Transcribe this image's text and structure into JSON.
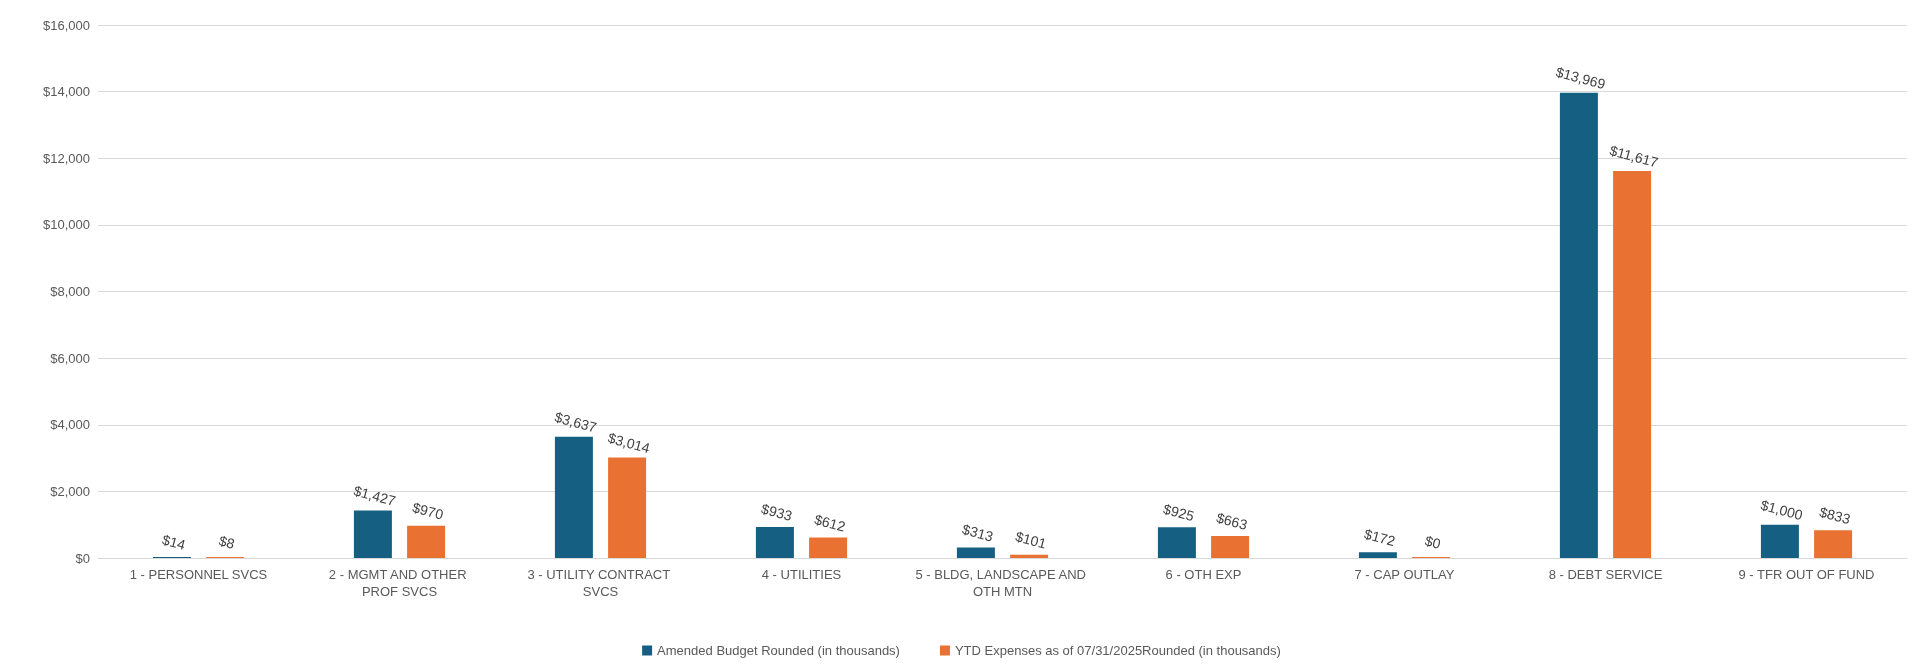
{
  "chart_data": {
    "type": "bar",
    "categories": [
      "1 - PERSONNEL SVCS",
      "2 - MGMT AND OTHER PROF SVCS",
      "3 - UTILITY CONTRACT SVCS",
      "4 - UTILITIES",
      "5 - BLDG, LANDSCAPE AND OTH MTN",
      "6 - OTH EXP",
      "7 - CAP OUTLAY",
      "8 - DEBT SERVICE",
      "9 - TFR OUT OF FUND"
    ],
    "series": [
      {
        "name": "Amended Budget Rounded (in thousands)",
        "color": "#156082",
        "values": [
          14,
          1427,
          3637,
          933,
          313,
          925,
          172,
          13969,
          1000
        ],
        "value_labels": [
          "$14",
          "$1,427",
          "$3,637",
          "$933",
          "$313",
          "$925",
          "$172",
          "$13,969",
          "$1,000"
        ]
      },
      {
        "name": "YTD Expenses as of 07/31/2025Rounded (in thousands)",
        "color": "#e97132",
        "values": [
          8,
          970,
          3014,
          612,
          101,
          663,
          0,
          11617,
          833
        ],
        "value_labels": [
          "$8",
          "$970",
          "$3,014",
          "$612",
          "$101",
          "$663",
          "$0",
          "$11,617",
          "$833"
        ]
      }
    ],
    "ylim": [
      0,
      16000
    ],
    "yticks": [
      {
        "value": 0,
        "label": "$0"
      },
      {
        "value": 2000,
        "label": "$2,000"
      },
      {
        "value": 4000,
        "label": "$4,000"
      },
      {
        "value": 6000,
        "label": "$6,000"
      },
      {
        "value": 8000,
        "label": "$8,000"
      },
      {
        "value": 10000,
        "label": "$10,000"
      },
      {
        "value": 12000,
        "label": "$12,000"
      },
      {
        "value": 14000,
        "label": "$14,000"
      },
      {
        "value": 16000,
        "label": "$16,000"
      }
    ],
    "grid": "y",
    "legend": "bottom"
  }
}
